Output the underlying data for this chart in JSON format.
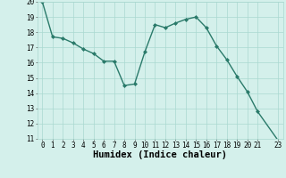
{
  "x": [
    0,
    1,
    2,
    3,
    4,
    5,
    6,
    7,
    8,
    9,
    10,
    11,
    12,
    13,
    14,
    15,
    16,
    17,
    18,
    19,
    20,
    21,
    23
  ],
  "y": [
    20.0,
    17.7,
    17.6,
    17.3,
    16.9,
    16.6,
    16.1,
    16.1,
    14.5,
    14.6,
    16.7,
    18.5,
    18.3,
    18.6,
    18.85,
    19.0,
    18.3,
    17.1,
    16.2,
    15.1,
    14.1,
    12.8,
    10.9
  ],
  "line_color": "#2a7a6a",
  "marker": "D",
  "marker_size": 2.0,
  "bg_color": "#d4f0eb",
  "grid_color": "#aad8d0",
  "xlabel": "Humidex (Indice chaleur)",
  "xlabel_fontsize": 7.5,
  "ylim": [
    11,
    20
  ],
  "xlim": [
    -0.5,
    23.5
  ],
  "yticks": [
    11,
    12,
    13,
    14,
    15,
    16,
    17,
    18,
    19,
    20
  ],
  "xticks": [
    0,
    1,
    2,
    3,
    4,
    5,
    6,
    7,
    8,
    9,
    10,
    11,
    12,
    13,
    14,
    15,
    16,
    17,
    18,
    19,
    20,
    21,
    23
  ],
  "tick_fontsize": 5.5,
  "linewidth": 1.0
}
